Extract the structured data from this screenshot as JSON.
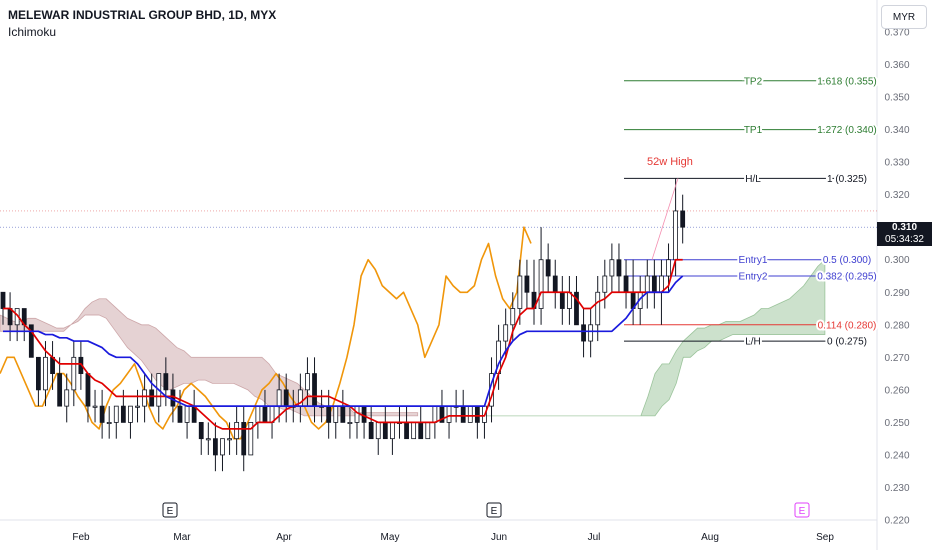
{
  "header": {
    "title": "MELEWAR INDUSTRIAL GROUP BHD, 1D, MYX",
    "indicator": "Ichimoku"
  },
  "currency": "MYR",
  "last_price": {
    "price": "0.310",
    "countdown": "05:34:32"
  },
  "high_annotation": "52w High",
  "colors": {
    "tenkan": "#e00000",
    "kijun": "#1a1add",
    "chikou": "#f0960a",
    "kumo_bear": "#b57d80",
    "kumo_bull": "#6da86d",
    "fib_tp": "#2e7d32",
    "fib_entry": "#3f3fd0",
    "fib_stop": "#e53935",
    "fib_hl": "#131722",
    "axis_text": "#6a6d78",
    "earnings_future": "#e040fb"
  },
  "chart_data": {
    "type": "candlestick",
    "title": "MELEWAR INDUSTRIAL GROUP BHD, 1D, MYX",
    "indicator": "Ichimoku",
    "yaxis": {
      "min": 0.22,
      "max": 0.37,
      "ticks": [
        "0.370",
        "0.360",
        "0.350",
        "0.340",
        "0.330",
        "0.320",
        "0.310",
        "0.300",
        "0.290",
        "0.280",
        "0.270",
        "0.260",
        "0.250",
        "0.240",
        "0.230",
        "0.220"
      ]
    },
    "xaxis": {
      "ticks": [
        "Feb",
        "Mar",
        "Apr",
        "May",
        "Jun",
        "Jul",
        "Aug",
        "Sep"
      ]
    },
    "earnings_markers": [
      "E",
      "E",
      "E"
    ],
    "fib_levels": [
      {
        "left": "TP2",
        "right": "1.618 (0.355)",
        "price": 0.355,
        "kind": "tp"
      },
      {
        "left": "TP1",
        "right": "1.272 (0.340)",
        "price": 0.34,
        "kind": "tp"
      },
      {
        "left": "H/L",
        "right": "1 (0.325)",
        "price": 0.325,
        "kind": "hl"
      },
      {
        "left": "Entry1",
        "right": "0.5 (0.300)",
        "price": 0.3,
        "kind": "entry"
      },
      {
        "left": "Entry2",
        "right": "0.382 (0.295)",
        "price": 0.295,
        "kind": "entry"
      },
      {
        "left": "",
        "right": "0.114 (0.280)",
        "price": 0.28,
        "kind": "stop"
      },
      {
        "left": "L/H",
        "right": "0 (0.275)",
        "price": 0.275,
        "kind": "hl"
      }
    ],
    "candles": [
      {
        "o": 0.29,
        "h": 0.29,
        "l": 0.28,
        "c": 0.285
      },
      {
        "o": 0.285,
        "h": 0.29,
        "l": 0.275,
        "c": 0.28
      },
      {
        "o": 0.28,
        "h": 0.285,
        "l": 0.275,
        "c": 0.285
      },
      {
        "o": 0.285,
        "h": 0.285,
        "l": 0.275,
        "c": 0.28
      },
      {
        "o": 0.28,
        "h": 0.28,
        "l": 0.27,
        "c": 0.27
      },
      {
        "o": 0.27,
        "h": 0.27,
        "l": 0.255,
        "c": 0.26
      },
      {
        "o": 0.26,
        "h": 0.275,
        "l": 0.255,
        "c": 0.27
      },
      {
        "o": 0.27,
        "h": 0.275,
        "l": 0.26,
        "c": 0.265
      },
      {
        "o": 0.265,
        "h": 0.27,
        "l": 0.255,
        "c": 0.255
      },
      {
        "o": 0.255,
        "h": 0.265,
        "l": 0.25,
        "c": 0.26
      },
      {
        "o": 0.26,
        "h": 0.275,
        "l": 0.255,
        "c": 0.27
      },
      {
        "o": 0.27,
        "h": 0.275,
        "l": 0.26,
        "c": 0.265
      },
      {
        "o": 0.265,
        "h": 0.265,
        "l": 0.25,
        "c": 0.255
      },
      {
        "o": 0.255,
        "h": 0.26,
        "l": 0.25,
        "c": 0.255
      },
      {
        "o": 0.255,
        "h": 0.26,
        "l": 0.245,
        "c": 0.25
      },
      {
        "o": 0.25,
        "h": 0.255,
        "l": 0.245,
        "c": 0.25
      },
      {
        "o": 0.25,
        "h": 0.255,
        "l": 0.245,
        "c": 0.255
      },
      {
        "o": 0.255,
        "h": 0.26,
        "l": 0.25,
        "c": 0.25
      },
      {
        "o": 0.25,
        "h": 0.255,
        "l": 0.245,
        "c": 0.255
      },
      {
        "o": 0.255,
        "h": 0.26,
        "l": 0.25,
        "c": 0.255
      },
      {
        "o": 0.255,
        "h": 0.265,
        "l": 0.25,
        "c": 0.26
      },
      {
        "o": 0.26,
        "h": 0.265,
        "l": 0.255,
        "c": 0.255
      },
      {
        "o": 0.255,
        "h": 0.265,
        "l": 0.25,
        "c": 0.265
      },
      {
        "o": 0.265,
        "h": 0.27,
        "l": 0.255,
        "c": 0.26
      },
      {
        "o": 0.26,
        "h": 0.265,
        "l": 0.25,
        "c": 0.255
      },
      {
        "o": 0.255,
        "h": 0.26,
        "l": 0.25,
        "c": 0.25
      },
      {
        "o": 0.25,
        "h": 0.255,
        "l": 0.245,
        "c": 0.255
      },
      {
        "o": 0.255,
        "h": 0.26,
        "l": 0.25,
        "c": 0.25
      },
      {
        "o": 0.25,
        "h": 0.25,
        "l": 0.24,
        "c": 0.245
      },
      {
        "o": 0.245,
        "h": 0.25,
        "l": 0.24,
        "c": 0.245
      },
      {
        "o": 0.245,
        "h": 0.25,
        "l": 0.235,
        "c": 0.24
      },
      {
        "o": 0.24,
        "h": 0.245,
        "l": 0.235,
        "c": 0.245
      },
      {
        "o": 0.245,
        "h": 0.25,
        "l": 0.24,
        "c": 0.245
      },
      {
        "o": 0.245,
        "h": 0.255,
        "l": 0.24,
        "c": 0.25
      },
      {
        "o": 0.25,
        "h": 0.255,
        "l": 0.235,
        "c": 0.24
      },
      {
        "o": 0.24,
        "h": 0.25,
        "l": 0.24,
        "c": 0.25
      },
      {
        "o": 0.25,
        "h": 0.255,
        "l": 0.245,
        "c": 0.255
      },
      {
        "o": 0.255,
        "h": 0.26,
        "l": 0.25,
        "c": 0.25
      },
      {
        "o": 0.25,
        "h": 0.255,
        "l": 0.245,
        "c": 0.255
      },
      {
        "o": 0.255,
        "h": 0.265,
        "l": 0.25,
        "c": 0.26
      },
      {
        "o": 0.26,
        "h": 0.265,
        "l": 0.25,
        "c": 0.255
      },
      {
        "o": 0.255,
        "h": 0.26,
        "l": 0.25,
        "c": 0.255
      },
      {
        "o": 0.255,
        "h": 0.265,
        "l": 0.25,
        "c": 0.26
      },
      {
        "o": 0.26,
        "h": 0.27,
        "l": 0.255,
        "c": 0.265
      },
      {
        "o": 0.265,
        "h": 0.27,
        "l": 0.25,
        "c": 0.255
      },
      {
        "o": 0.255,
        "h": 0.26,
        "l": 0.25,
        "c": 0.255
      },
      {
        "o": 0.255,
        "h": 0.26,
        "l": 0.245,
        "c": 0.25
      },
      {
        "o": 0.25,
        "h": 0.255,
        "l": 0.245,
        "c": 0.255
      },
      {
        "o": 0.255,
        "h": 0.26,
        "l": 0.25,
        "c": 0.25
      },
      {
        "o": 0.25,
        "h": 0.255,
        "l": 0.245,
        "c": 0.25
      },
      {
        "o": 0.25,
        "h": 0.255,
        "l": 0.245,
        "c": 0.255
      },
      {
        "o": 0.255,
        "h": 0.255,
        "l": 0.245,
        "c": 0.25
      },
      {
        "o": 0.25,
        "h": 0.255,
        "l": 0.245,
        "c": 0.245
      },
      {
        "o": 0.245,
        "h": 0.25,
        "l": 0.24,
        "c": 0.25
      },
      {
        "o": 0.25,
        "h": 0.255,
        "l": 0.245,
        "c": 0.245
      },
      {
        "o": 0.245,
        "h": 0.25,
        "l": 0.24,
        "c": 0.25
      },
      {
        "o": 0.25,
        "h": 0.255,
        "l": 0.245,
        "c": 0.25
      },
      {
        "o": 0.25,
        "h": 0.255,
        "l": 0.245,
        "c": 0.245
      },
      {
        "o": 0.245,
        "h": 0.25,
        "l": 0.245,
        "c": 0.25
      },
      {
        "o": 0.25,
        "h": 0.255,
        "l": 0.245,
        "c": 0.245
      },
      {
        "o": 0.245,
        "h": 0.25,
        "l": 0.245,
        "c": 0.25
      },
      {
        "o": 0.25,
        "h": 0.255,
        "l": 0.245,
        "c": 0.255
      },
      {
        "o": 0.255,
        "h": 0.26,
        "l": 0.25,
        "c": 0.25
      },
      {
        "o": 0.25,
        "h": 0.255,
        "l": 0.245,
        "c": 0.255
      },
      {
        "o": 0.255,
        "h": 0.26,
        "l": 0.25,
        "c": 0.255
      },
      {
        "o": 0.255,
        "h": 0.26,
        "l": 0.25,
        "c": 0.25
      },
      {
        "o": 0.25,
        "h": 0.255,
        "l": 0.25,
        "c": 0.255
      },
      {
        "o": 0.255,
        "h": 0.255,
        "l": 0.245,
        "c": 0.25
      },
      {
        "o": 0.25,
        "h": 0.255,
        "l": 0.245,
        "c": 0.255
      },
      {
        "o": 0.255,
        "h": 0.27,
        "l": 0.25,
        "c": 0.265
      },
      {
        "o": 0.265,
        "h": 0.28,
        "l": 0.26,
        "c": 0.275
      },
      {
        "o": 0.275,
        "h": 0.285,
        "l": 0.27,
        "c": 0.28
      },
      {
        "o": 0.28,
        "h": 0.29,
        "l": 0.275,
        "c": 0.285
      },
      {
        "o": 0.285,
        "h": 0.3,
        "l": 0.28,
        "c": 0.295
      },
      {
        "o": 0.295,
        "h": 0.3,
        "l": 0.285,
        "c": 0.29
      },
      {
        "o": 0.29,
        "h": 0.3,
        "l": 0.28,
        "c": 0.285
      },
      {
        "o": 0.285,
        "h": 0.31,
        "l": 0.28,
        "c": 0.3
      },
      {
        "o": 0.3,
        "h": 0.305,
        "l": 0.29,
        "c": 0.295
      },
      {
        "o": 0.295,
        "h": 0.3,
        "l": 0.285,
        "c": 0.29
      },
      {
        "o": 0.29,
        "h": 0.295,
        "l": 0.28,
        "c": 0.285
      },
      {
        "o": 0.285,
        "h": 0.295,
        "l": 0.28,
        "c": 0.29
      },
      {
        "o": 0.29,
        "h": 0.295,
        "l": 0.28,
        "c": 0.28
      },
      {
        "o": 0.28,
        "h": 0.285,
        "l": 0.27,
        "c": 0.275
      },
      {
        "o": 0.275,
        "h": 0.285,
        "l": 0.27,
        "c": 0.28
      },
      {
        "o": 0.28,
        "h": 0.295,
        "l": 0.275,
        "c": 0.29
      },
      {
        "o": 0.29,
        "h": 0.3,
        "l": 0.285,
        "c": 0.295
      },
      {
        "o": 0.295,
        "h": 0.305,
        "l": 0.29,
        "c": 0.3
      },
      {
        "o": 0.3,
        "h": 0.305,
        "l": 0.29,
        "c": 0.295
      },
      {
        "o": 0.295,
        "h": 0.3,
        "l": 0.285,
        "c": 0.29
      },
      {
        "o": 0.29,
        "h": 0.3,
        "l": 0.28,
        "c": 0.285
      },
      {
        "o": 0.285,
        "h": 0.295,
        "l": 0.28,
        "c": 0.29
      },
      {
        "o": 0.29,
        "h": 0.3,
        "l": 0.285,
        "c": 0.295
      },
      {
        "o": 0.295,
        "h": 0.3,
        "l": 0.285,
        "c": 0.29
      },
      {
        "o": 0.29,
        "h": 0.3,
        "l": 0.28,
        "c": 0.295
      },
      {
        "o": 0.295,
        "h": 0.305,
        "l": 0.29,
        "c": 0.3
      },
      {
        "o": 0.3,
        "h": 0.325,
        "l": 0.295,
        "c": 0.315
      },
      {
        "o": 0.315,
        "h": 0.32,
        "l": 0.305,
        "c": 0.31
      }
    ],
    "tenkan": [
      0.285,
      0.285,
      0.283,
      0.28,
      0.278,
      0.275,
      0.272,
      0.27,
      0.268,
      0.268,
      0.268,
      0.268,
      0.265,
      0.263,
      0.262,
      0.26,
      0.258,
      0.258,
      0.258,
      0.258,
      0.258,
      0.258,
      0.258,
      0.258,
      0.258,
      0.257,
      0.256,
      0.255,
      0.253,
      0.251,
      0.249,
      0.248,
      0.248,
      0.248,
      0.248,
      0.248,
      0.25,
      0.25,
      0.25,
      0.252,
      0.254,
      0.255,
      0.256,
      0.258,
      0.258,
      0.258,
      0.258,
      0.257,
      0.256,
      0.255,
      0.253,
      0.252,
      0.251,
      0.25,
      0.25,
      0.25,
      0.25,
      0.25,
      0.25,
      0.25,
      0.25,
      0.25,
      0.251,
      0.252,
      0.252,
      0.252,
      0.252,
      0.252,
      0.252,
      0.258,
      0.265,
      0.27,
      0.278,
      0.283,
      0.285,
      0.285,
      0.29,
      0.29,
      0.29,
      0.29,
      0.29,
      0.288,
      0.285,
      0.285,
      0.287,
      0.288,
      0.29,
      0.29,
      0.29,
      0.29,
      0.29,
      0.29,
      0.29,
      0.29,
      0.292,
      0.3,
      0.3
    ],
    "kijun": [
      0.278,
      0.278,
      0.278,
      0.278,
      0.278,
      0.278,
      0.277,
      0.277,
      0.276,
      0.276,
      0.275,
      0.275,
      0.275,
      0.274,
      0.273,
      0.271,
      0.27,
      0.27,
      0.27,
      0.268,
      0.265,
      0.262,
      0.26,
      0.258,
      0.257,
      0.256,
      0.255,
      0.255,
      0.255,
      0.255,
      0.255,
      0.255,
      0.255,
      0.255,
      0.255,
      0.255,
      0.255,
      0.255,
      0.255,
      0.255,
      0.255,
      0.255,
      0.255,
      0.255,
      0.255,
      0.255,
      0.255,
      0.255,
      0.255,
      0.255,
      0.255,
      0.255,
      0.255,
      0.255,
      0.255,
      0.255,
      0.255,
      0.255,
      0.255,
      0.255,
      0.255,
      0.255,
      0.255,
      0.255,
      0.255,
      0.255,
      0.255,
      0.255,
      0.255,
      0.262,
      0.268,
      0.272,
      0.275,
      0.277,
      0.278,
      0.278,
      0.278,
      0.278,
      0.278,
      0.278,
      0.278,
      0.278,
      0.278,
      0.278,
      0.278,
      0.278,
      0.278,
      0.28,
      0.282,
      0.285,
      0.288,
      0.29,
      0.29,
      0.29,
      0.29,
      0.293,
      0.295
    ],
    "chikou": [
      0.265,
      0.27,
      0.27,
      0.265,
      0.26,
      0.255,
      0.255,
      0.26,
      0.265,
      0.265,
      0.262,
      0.258,
      0.255,
      0.25,
      0.248,
      0.255,
      0.26,
      0.262,
      0.265,
      0.268,
      0.262,
      0.255,
      0.25,
      0.248,
      0.252,
      0.255,
      0.26,
      0.262,
      0.26,
      0.258,
      0.255,
      0.252,
      0.25,
      0.245,
      0.245,
      0.25,
      0.255,
      0.26,
      0.262,
      0.265,
      0.262,
      0.258,
      0.255,
      0.255,
      0.25,
      0.248,
      0.25,
      0.255,
      0.262,
      0.27,
      0.28,
      0.295,
      0.3,
      0.297,
      0.292,
      0.29,
      0.288,
      0.29,
      0.285,
      0.28,
      0.27,
      0.275,
      0.28,
      0.295,
      0.292,
      0.29,
      0.29,
      0.292,
      0.3,
      0.305,
      0.295,
      0.288,
      0.285,
      0.29,
      0.31,
      0.305
    ],
    "kumo_bear_a": [
      0.283,
      0.282,
      0.281,
      0.281,
      0.282,
      0.282,
      0.281,
      0.28,
      0.279,
      0.279,
      0.28,
      0.281,
      0.283,
      0.283,
      0.283,
      0.282,
      0.279,
      0.276,
      0.273,
      0.271,
      0.269,
      0.266,
      0.263,
      0.261,
      0.26,
      0.261,
      0.262,
      0.262,
      0.263,
      0.263,
      0.262,
      0.262,
      0.262,
      0.262,
      0.261,
      0.26,
      0.258,
      0.257,
      0.255,
      0.255,
      0.254,
      0.254,
      0.253,
      0.252,
      0.252,
      0.252,
      0.252,
      0.252,
      0.252,
      0.252,
      0.252,
      0.252,
      0.252,
      0.252,
      0.252,
      0.252,
      0.252,
      0.252,
      0.252,
      0.252
    ],
    "kumo_bear_b": [
      0.278,
      0.278,
      0.278,
      0.278,
      0.278,
      0.278,
      0.278,
      0.278,
      0.278,
      0.278,
      0.28,
      0.282,
      0.285,
      0.287,
      0.288,
      0.288,
      0.286,
      0.284,
      0.282,
      0.281,
      0.28,
      0.28,
      0.279,
      0.277,
      0.275,
      0.273,
      0.272,
      0.27,
      0.27,
      0.27,
      0.27,
      0.27,
      0.27,
      0.27,
      0.27,
      0.27,
      0.27,
      0.27,
      0.268,
      0.265,
      0.264,
      0.263,
      0.262,
      0.26,
      0.258,
      0.256,
      0.255,
      0.255,
      0.255,
      0.255,
      0.253,
      0.253,
      0.253,
      0.253,
      0.253,
      0.253,
      0.253,
      0.253,
      0.253,
      0.253
    ],
    "kumo_bull_a": [
      0.252,
      0.252,
      0.252,
      0.252,
      0.252,
      0.252,
      0.252,
      0.252,
      0.252,
      0.252,
      0.252,
      0.252,
      0.252,
      0.252,
      0.252,
      0.252,
      0.252,
      0.252,
      0.252,
      0.252,
      0.252,
      0.252,
      0.252,
      0.252,
      0.258,
      0.265,
      0.268,
      0.268,
      0.272,
      0.275,
      0.277,
      0.279,
      0.279,
      0.28,
      0.28,
      0.281,
      0.281,
      0.281,
      0.282,
      0.283,
      0.285,
      0.285,
      0.286,
      0.287,
      0.288,
      0.29,
      0.292,
      0.295,
      0.298,
      0.3
    ],
    "kumo_bull_b": [
      0.252,
      0.252,
      0.252,
      0.252,
      0.252,
      0.252,
      0.252,
      0.252,
      0.252,
      0.252,
      0.252,
      0.252,
      0.252,
      0.252,
      0.252,
      0.252,
      0.252,
      0.252,
      0.252,
      0.252,
      0.252,
      0.252,
      0.252,
      0.252,
      0.252,
      0.252,
      0.255,
      0.257,
      0.262,
      0.27,
      0.27,
      0.272,
      0.273,
      0.275,
      0.275,
      0.276,
      0.277,
      0.277,
      0.277,
      0.277,
      0.277,
      0.277,
      0.277,
      0.277,
      0.277,
      0.277,
      0.277,
      0.277,
      0.277,
      0.277
    ]
  }
}
